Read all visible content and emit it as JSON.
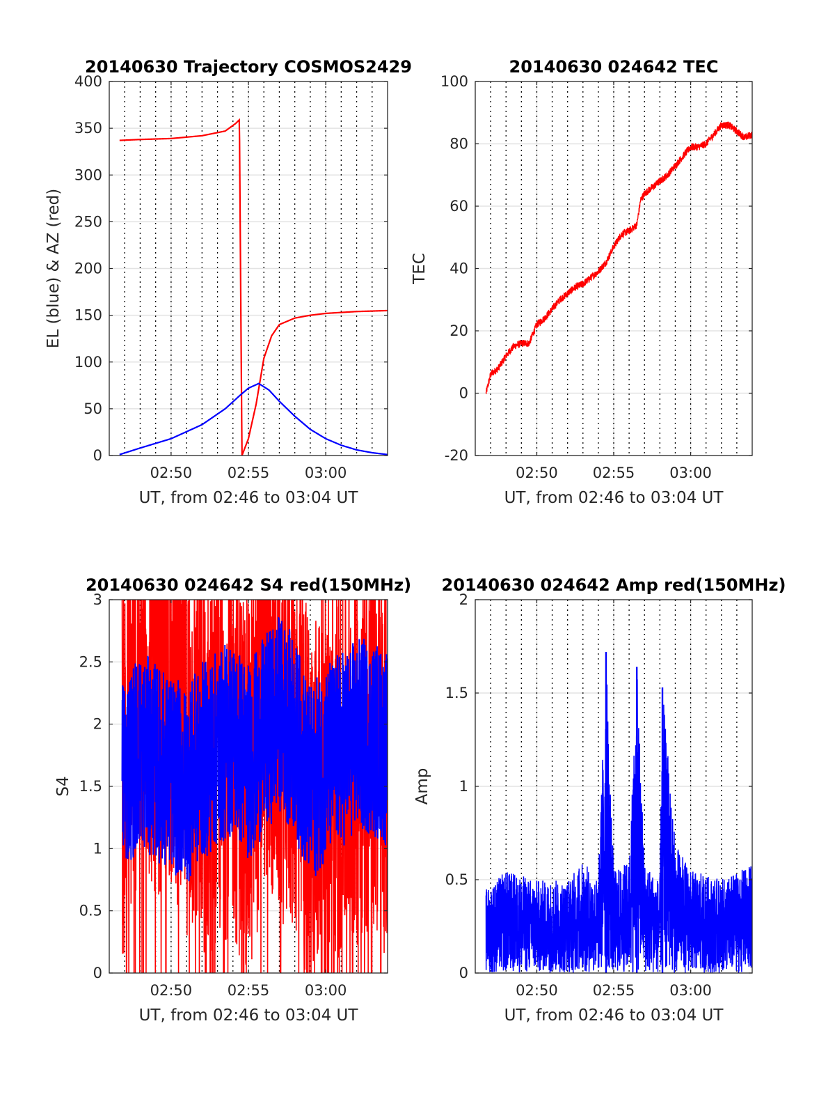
{
  "time_axis": {
    "xlim": [
      "02:46",
      "03:04"
    ],
    "tick_labels": [
      "02:50",
      "02:55",
      "03:00"
    ],
    "xlabel": "UT, from 02:46 to 03:04 UT",
    "dotted_lines_every_minutes": 1
  },
  "colors": {
    "red": "#ff0000",
    "blue": "#0000ff"
  },
  "chart_data": [
    {
      "id": "trajectory",
      "type": "line",
      "title": "20140630 Trajectory COSMOS2429",
      "xlabel": "UT, from 02:46 to 03:04 UT",
      "ylabel": "EL (blue) & AZ (red)",
      "ylim": [
        0,
        400
      ],
      "yticks": [
        "0",
        "50",
        "100",
        "150",
        "200",
        "250",
        "300",
        "350",
        "400"
      ],
      "grid": true,
      "series": [
        {
          "color": "#ff0000",
          "x": [
            "02:46:40",
            "02:48:00",
            "02:50:00",
            "02:52:00",
            "02:53:30",
            "02:54:10",
            "02:54:25",
            "02:54:30",
            "02:54:35",
            "02:55:00",
            "02:55:30",
            "02:56:00",
            "02:56:30",
            "02:57:00",
            "02:58:00",
            "02:59:00",
            "03:00:00",
            "03:02:00",
            "03:04:00"
          ],
          "values": [
            337,
            338,
            339,
            342,
            347,
            355,
            359,
            180,
            0,
            18,
            55,
            104,
            128,
            140,
            147,
            150,
            152,
            154,
            155
          ]
        },
        {
          "color": "#0000ff",
          "x": [
            "02:46:40",
            "02:48:00",
            "02:50:00",
            "02:52:00",
            "02:53:30",
            "02:54:30",
            "02:55:00",
            "02:55:40",
            "02:56:20",
            "02:57:00",
            "02:58:00",
            "02:59:00",
            "03:00:00",
            "03:01:00",
            "03:02:00",
            "03:03:00",
            "03:04:00"
          ],
          "values": [
            1,
            8,
            18,
            33,
            50,
            65,
            72,
            77,
            70,
            58,
            42,
            28,
            18,
            11,
            6,
            3,
            1
          ]
        }
      ]
    },
    {
      "id": "tec",
      "type": "line",
      "title": "20140630 024642 TEC",
      "xlabel": "UT, from 02:46 to 03:04 UT",
      "ylabel": "TEC",
      "ylim": [
        -20,
        100
      ],
      "yticks": [
        "-20",
        "0",
        "20",
        "40",
        "60",
        "80",
        "100"
      ],
      "grid": true,
      "series": [
        {
          "color": "#ff0000",
          "x": [
            "02:46:42",
            "02:47:00",
            "02:47:30",
            "02:48:00",
            "02:48:30",
            "02:49:00",
            "02:49:30",
            "02:50:00",
            "02:50:30",
            "02:51:00",
            "02:51:30",
            "02:52:00",
            "02:52:30",
            "02:53:00",
            "02:53:30",
            "02:54:00",
            "02:54:30",
            "02:55:00",
            "02:55:30",
            "02:56:00",
            "02:56:30",
            "02:56:45",
            "02:57:00",
            "02:57:30",
            "02:58:00",
            "02:58:30",
            "02:59:00",
            "02:59:30",
            "03:00:00",
            "03:00:30",
            "03:01:00",
            "03:01:30",
            "03:02:00",
            "03:02:30",
            "03:03:00",
            "03:03:30",
            "03:04:00"
          ],
          "values": [
            0,
            6,
            8,
            12,
            15,
            16,
            16,
            22,
            24,
            27,
            30,
            32,
            34,
            35,
            37,
            39,
            42,
            47,
            51,
            52,
            54,
            62,
            64,
            66,
            68,
            70,
            73,
            76,
            79,
            79,
            80,
            83,
            86,
            86,
            84,
            82,
            83
          ]
        }
      ]
    },
    {
      "id": "s4",
      "type": "line",
      "title": "20140630 024642 S4 red(150MHz)",
      "xlabel": "UT, from 02:46 to 03:04 UT",
      "ylabel": "S4",
      "ylim": [
        0,
        3
      ],
      "yticks": [
        "0",
        "0.5",
        "1",
        "1.5",
        "2",
        "2.5",
        "3"
      ],
      "grid": true,
      "series": [
        {
          "color": "#ff0000",
          "x": [
            "02:46:50",
            "02:48:00",
            "02:49:00",
            "02:50:00",
            "02:51:00",
            "02:52:00",
            "02:53:00",
            "02:54:00",
            "02:55:00",
            "02:56:00",
            "02:57:00",
            "02:58:00",
            "02:59:00",
            "03:00:00",
            "03:01:00",
            "03:02:00",
            "03:03:00",
            "03:04:00"
          ],
          "values": [
            1.6,
            2.4,
            2.2,
            2.3,
            1.9,
            1.7,
            1.8,
            1.9,
            1.4,
            2.3,
            2.0,
            1.9,
            1.3,
            1.6,
            1.7,
            1.8,
            1.9,
            1.7
          ]
        },
        {
          "color": "#0000ff",
          "x": [
            "02:46:50",
            "02:48:00",
            "02:49:00",
            "02:50:00",
            "02:51:00",
            "02:52:00",
            "02:53:00",
            "02:54:00",
            "02:55:00",
            "02:56:00",
            "02:57:00",
            "02:58:00",
            "02:59:00",
            "03:00:00",
            "03:01:00",
            "03:02:00",
            "03:03:00",
            "03:04:00"
          ],
          "values": [
            1.6,
            1.8,
            1.7,
            1.6,
            1.5,
            1.7,
            1.8,
            1.9,
            1.7,
            1.9,
            2.1,
            1.9,
            1.5,
            1.7,
            1.8,
            1.9,
            1.9,
            1.8
          ]
        }
      ]
    },
    {
      "id": "amp",
      "type": "line",
      "title": "20140630 024642 Amp red(150MHz)",
      "xlabel": "UT, from 02:46 to 03:04 UT",
      "ylabel": "Amp",
      "ylim": [
        0,
        2
      ],
      "yticks": [
        "0",
        "0.5",
        "1",
        "1.5",
        "2"
      ],
      "grid": true,
      "series": [
        {
          "color": "#0000ff",
          "x": [
            "02:46:42",
            "02:48:00",
            "02:50:00",
            "02:52:00",
            "02:53:00",
            "02:54:00",
            "02:54:30",
            "02:55:00",
            "02:56:00",
            "02:56:30",
            "02:57:00",
            "02:58:00",
            "02:58:10",
            "02:59:00",
            "03:00:00",
            "03:02:00",
            "03:04:00"
          ],
          "values": [
            0.45,
            0.55,
            0.5,
            0.5,
            0.6,
            0.5,
            1.72,
            0.55,
            0.6,
            1.64,
            0.6,
            0.5,
            1.53,
            0.7,
            0.55,
            0.5,
            0.58
          ]
        }
      ]
    }
  ]
}
